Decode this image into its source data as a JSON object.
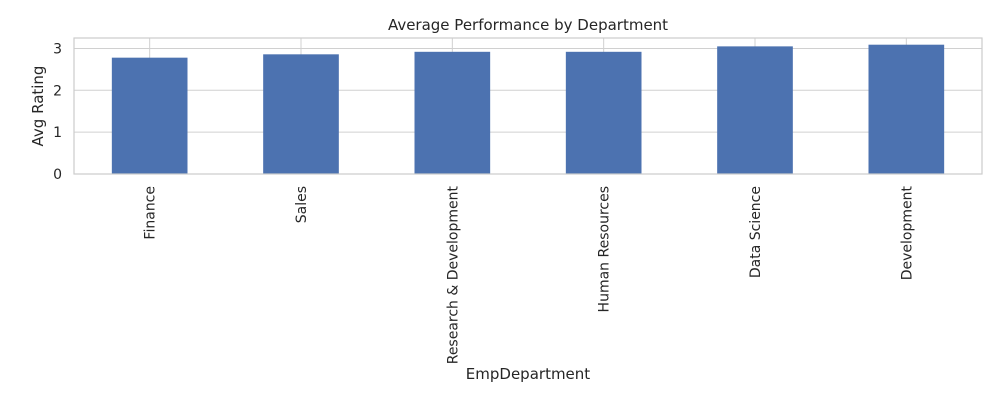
{
  "chart_data": {
    "type": "bar",
    "title": "Average Performance by Department",
    "xlabel": "EmpDepartment",
    "ylabel": "Avg Rating",
    "categories": [
      "Finance",
      "Sales",
      "Research & Development",
      "Human Resources",
      "Data Science",
      "Development"
    ],
    "values": [
      2.78,
      2.86,
      2.92,
      2.92,
      3.05,
      3.09
    ],
    "yticks": [
      0,
      1,
      2,
      3
    ],
    "ylim": [
      0,
      3.25
    ],
    "grid": true,
    "legend": "none",
    "colors": {
      "bar": "#4c72b0",
      "grid": "#d0d0d0",
      "axes_edge": "#cccccc"
    }
  }
}
